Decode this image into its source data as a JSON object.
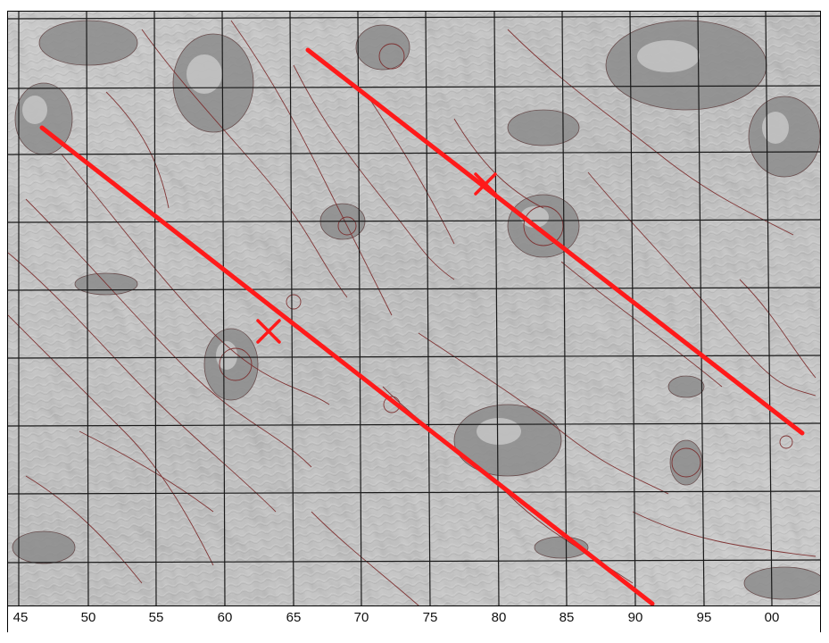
{
  "map": {
    "type": "relief-map",
    "grid": true,
    "colors": {
      "terrain": "#b9b9b9",
      "contour": "#7a2828",
      "grid": "#1a1a1a",
      "track": "#ff1a1a"
    },
    "x_axis": {
      "tick_labels": [
        "45",
        "50",
        "55",
        "60",
        "65",
        "70",
        "75",
        "80",
        "85",
        "90",
        "95",
        "00"
      ]
    },
    "tracks": [
      {
        "id": "upper-track",
        "marker": "x-marker-icon"
      },
      {
        "id": "lower-track",
        "marker": "x-marker-icon"
      }
    ]
  }
}
